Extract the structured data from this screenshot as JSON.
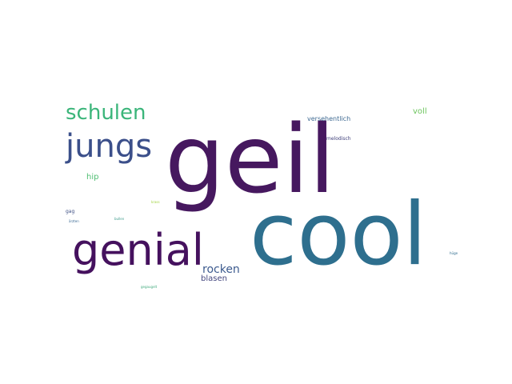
{
  "words": [
    {
      "text": "geil",
      "color": "#46185f"
    },
    {
      "text": "cool",
      "color": "#2e6f8e"
    },
    {
      "text": "genial",
      "color": "#45115e"
    },
    {
      "text": "jungs",
      "color": "#3b4f8a"
    },
    {
      "text": "schulen",
      "color": "#3bb57a"
    },
    {
      "text": "rocken",
      "color": "#3c5a8e"
    },
    {
      "text": "blasen",
      "color": "#44477f"
    },
    {
      "text": "hip",
      "color": "#4fbe72"
    },
    {
      "text": "voll",
      "color": "#6cc45c"
    },
    {
      "text": "versehentlich",
      "color": "#3f6a92"
    },
    {
      "text": "melodisch",
      "color": "#3e3f7a"
    },
    {
      "text": "gag",
      "color": "#3e4f84"
    },
    {
      "text": "krass",
      "color": "#9fd33c"
    },
    {
      "text": "bullen",
      "color": "#3e9b8c"
    },
    {
      "text": "ärzten",
      "color": "#3a6a94"
    },
    {
      "text": "hüge",
      "color": "#2f6c8f"
    },
    {
      "text": "gegaugelt",
      "color": "#47ad80"
    }
  ]
}
